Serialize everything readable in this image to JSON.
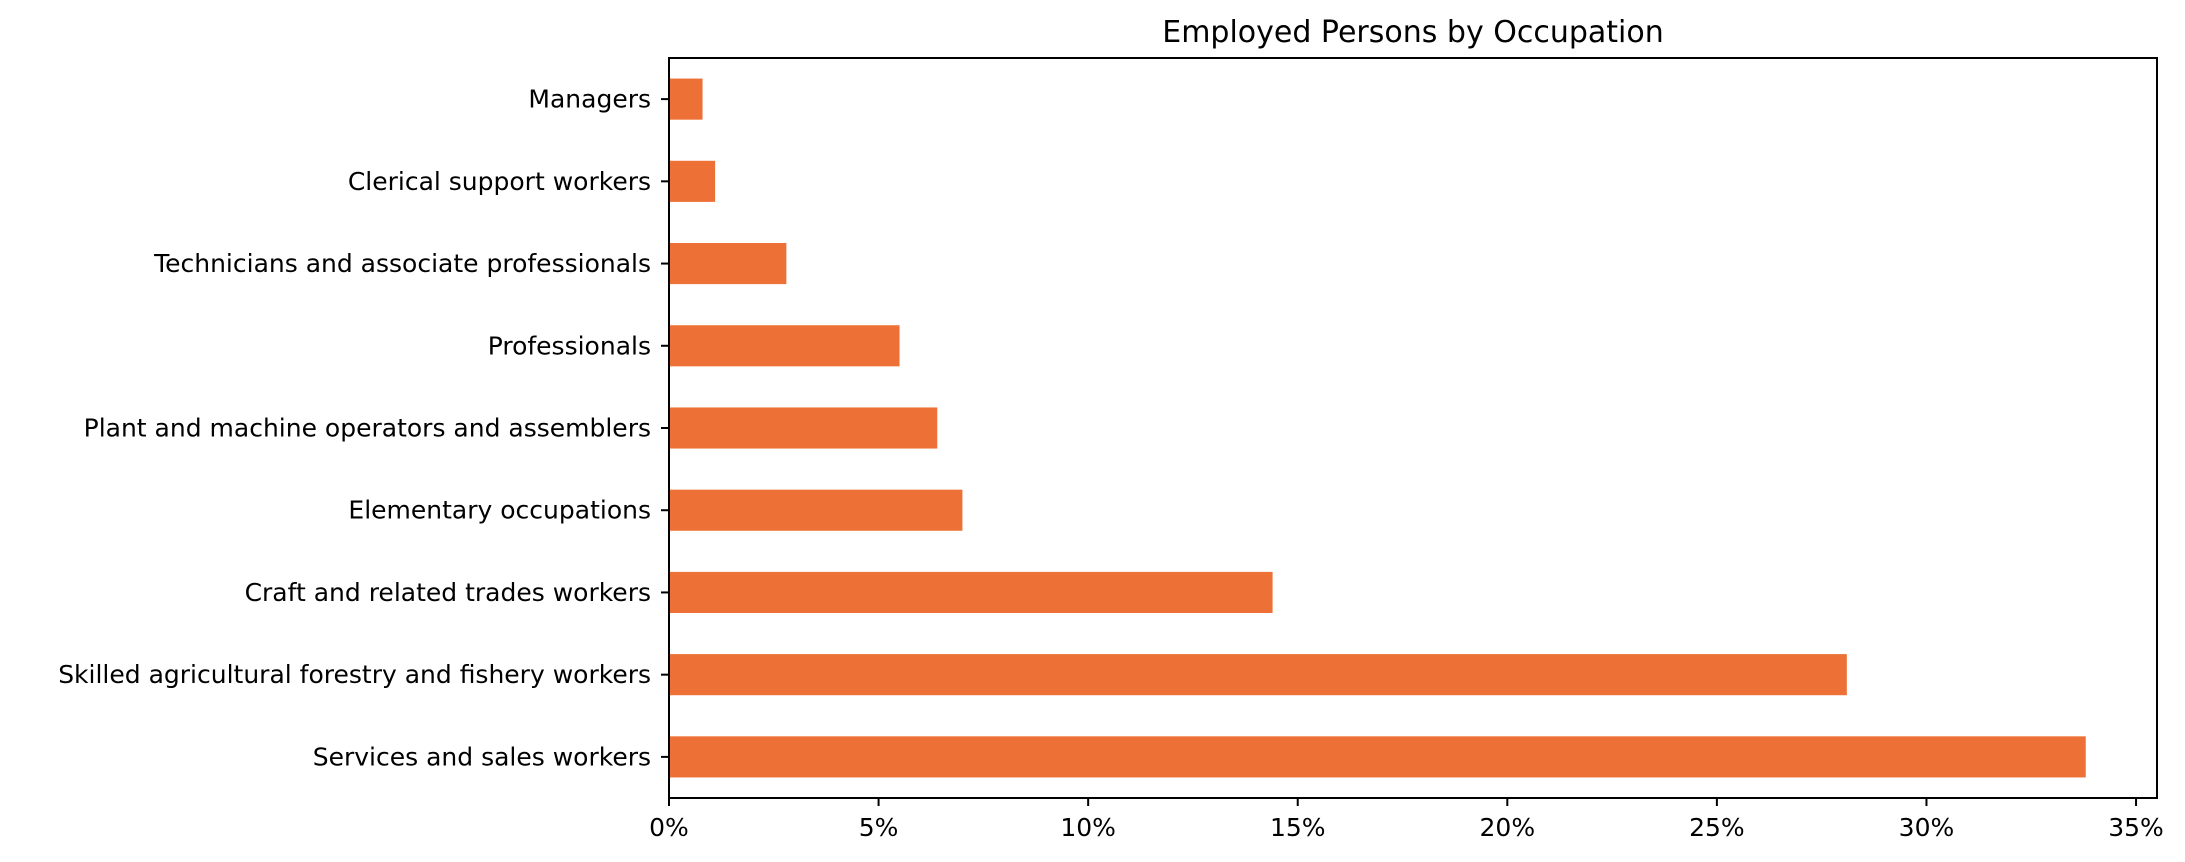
{
  "chart_data": {
    "type": "bar",
    "orientation": "horizontal",
    "title": "Employed Persons by Occupation",
    "xlabel": "",
    "ylabel": "",
    "categories": [
      "Services and sales workers",
      "Skilled agricultural forestry and fishery workers",
      "Craft and related trades workers",
      "Elementary occupations",
      "Plant and machine operators and assemblers",
      "Professionals",
      "Technicians and associate professionals",
      "Clerical support workers",
      "Managers"
    ],
    "values": [
      33.8,
      28.1,
      14.4,
      7.0,
      6.4,
      5.5,
      2.8,
      1.1,
      0.8
    ],
    "unit": "%",
    "xlim": [
      0,
      35.5
    ],
    "xticks": [
      0,
      5,
      10,
      15,
      20,
      25,
      30,
      35
    ],
    "xtick_labels": [
      "0%",
      "5%",
      "10%",
      "15%",
      "20%",
      "25%",
      "30%",
      "35%"
    ],
    "grid": false,
    "legend": "none",
    "bar_color": "#ED7036"
  }
}
